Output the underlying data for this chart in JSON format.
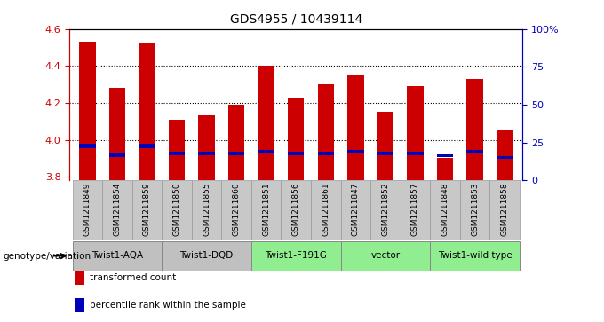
{
  "title": "GDS4955 / 10439114",
  "samples": [
    "GSM1211849",
    "GSM1211854",
    "GSM1211859",
    "GSM1211850",
    "GSM1211855",
    "GSM1211860",
    "GSM1211851",
    "GSM1211856",
    "GSM1211861",
    "GSM1211847",
    "GSM1211852",
    "GSM1211857",
    "GSM1211848",
    "GSM1211853",
    "GSM1211858"
  ],
  "bar_values": [
    4.53,
    4.28,
    4.52,
    4.11,
    4.13,
    4.19,
    4.4,
    4.23,
    4.3,
    4.35,
    4.15,
    4.29,
    3.9,
    4.33,
    4.05
  ],
  "blue_bottoms": [
    3.955,
    3.905,
    3.955,
    3.915,
    3.915,
    3.915,
    3.925,
    3.915,
    3.915,
    3.925,
    3.915,
    3.915,
    3.905,
    3.925,
    3.895
  ],
  "blue_heights": [
    0.025,
    0.02,
    0.025,
    0.018,
    0.018,
    0.018,
    0.02,
    0.018,
    0.018,
    0.02,
    0.018,
    0.018,
    0.018,
    0.02,
    0.018
  ],
  "ylim_left": [
    3.78,
    4.6
  ],
  "ylim_right": [
    0,
    100
  ],
  "yticks_left": [
    3.8,
    4.0,
    4.2,
    4.4,
    4.6
  ],
  "yticks_right": [
    0,
    25,
    50,
    75,
    100
  ],
  "ytick_right_labels": [
    "0",
    "25",
    "50",
    "75",
    "100%"
  ],
  "bar_color": "#cc0000",
  "blue_color": "#0000bb",
  "bar_bottom": 3.78,
  "bar_width": 0.55,
  "groups": [
    {
      "label": "Twist1-AQA",
      "start": 0,
      "end": 2,
      "color": "#c0c0c0"
    },
    {
      "label": "Twist1-DQD",
      "start": 3,
      "end": 5,
      "color": "#c0c0c0"
    },
    {
      "label": "Twist1-F191G",
      "start": 6,
      "end": 8,
      "color": "#90ee90"
    },
    {
      "label": "vector",
      "start": 9,
      "end": 11,
      "color": "#90ee90"
    },
    {
      "label": "Twist1-wild type",
      "start": 12,
      "end": 14,
      "color": "#90ee90"
    }
  ],
  "genotype_label": "genotype/variation",
  "legend_items": [
    {
      "label": "transformed count",
      "color": "#cc0000"
    },
    {
      "label": "percentile rank within the sample",
      "color": "#0000bb"
    }
  ],
  "bg_color": "#ffffff",
  "axis_color_left": "#cc0000",
  "axis_color_right": "#0000bb",
  "gridlines": [
    4.0,
    4.2,
    4.4
  ]
}
